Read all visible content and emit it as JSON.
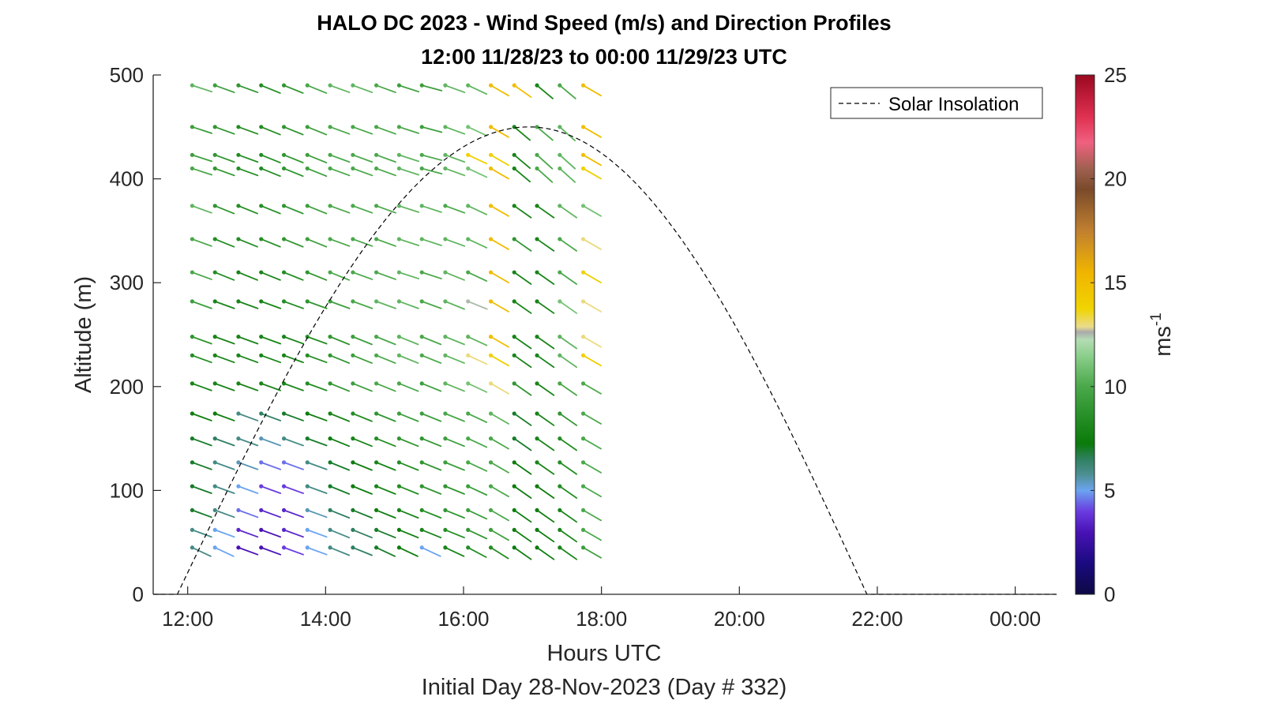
{
  "chart_data": {
    "type": "scatter",
    "title": "HALO DC 2023 - Wind Speed (m/s) and Direction Profiles",
    "subtitle": "12:00 11/28/23 to 00:00 11/29/23  UTC",
    "xlabel": "Hours UTC",
    "xlabel2": "Initial Day 28-Nov-2023 (Day # 332)",
    "ylabel": "Altitude (m)",
    "xlim_hours": [
      11.5,
      24.6
    ],
    "ylim": [
      0,
      500
    ],
    "x_ticks": [
      {
        "value": 12,
        "label": "12:00"
      },
      {
        "value": 14,
        "label": "14:00"
      },
      {
        "value": 16,
        "label": "16:00"
      },
      {
        "value": 18,
        "label": "18:00"
      },
      {
        "value": 20,
        "label": "20:00"
      },
      {
        "value": 22,
        "label": "22:00"
      },
      {
        "value": 24,
        "label": "00:00"
      }
    ],
    "y_ticks": [
      {
        "value": 0,
        "label": "0"
      },
      {
        "value": 100,
        "label": "100"
      },
      {
        "value": 200,
        "label": "200"
      },
      {
        "value": 300,
        "label": "300"
      },
      {
        "value": 400,
        "label": "400"
      },
      {
        "value": 500,
        "label": "500"
      }
    ],
    "colorbar": {
      "label": "ms",
      "label_exponent": "-1",
      "range": [
        0,
        25
      ],
      "ticks": [
        {
          "value": 0,
          "label": "0"
        },
        {
          "value": 5,
          "label": "5"
        },
        {
          "value": 10,
          "label": "10"
        },
        {
          "value": 15,
          "label": "15"
        },
        {
          "value": 20,
          "label": "20"
        },
        {
          "value": 25,
          "label": "25"
        }
      ]
    },
    "legend": {
      "entries": [
        {
          "name": "Solar Insolation",
          "style": "dashed",
          "color": "#000000"
        }
      ],
      "location": "top-right"
    },
    "solar_insolation": {
      "start_hour": 11.85,
      "end_hour": 21.85,
      "peak_hour": 16.95,
      "peak_altitude_equiv": 450
    },
    "wind_barbs": {
      "times_hours": [
        12.1,
        12.43,
        12.77,
        13.1,
        13.43,
        13.77,
        14.1,
        14.43,
        14.77,
        15.1,
        15.43,
        15.77,
        16.1,
        16.43,
        16.77,
        17.1,
        17.43,
        17.77
      ],
      "altitudes_m": [
        490,
        450,
        423,
        410,
        374,
        342,
        310,
        282,
        248,
        230,
        203,
        174,
        150,
        127,
        104,
        81,
        62,
        45
      ],
      "speeds_ms": [
        [
          10.5,
          9.5,
          9,
          8.5,
          9,
          10,
          10.5,
          10.5,
          10,
          9.5,
          9.5,
          10.5,
          10.5,
          15,
          15,
          8,
          10,
          15
        ],
        [
          9.5,
          9,
          8.5,
          8.5,
          9,
          9.5,
          10,
          10,
          10,
          10,
          9.5,
          10.5,
          11,
          15,
          8,
          10,
          10.5,
          15
        ],
        [
          9.5,
          9,
          8.5,
          8.5,
          9,
          9.5,
          10,
          10,
          10,
          10.5,
          10,
          10.5,
          14,
          14,
          8,
          10,
          10.5,
          15
        ],
        [
          10,
          9,
          8.5,
          8.5,
          9,
          9.5,
          10,
          10,
          10,
          10.5,
          10,
          10.5,
          11,
          15,
          8,
          10,
          10.5,
          14
        ],
        [
          10.5,
          9,
          8.5,
          8.5,
          9,
          9.5,
          10,
          10,
          10,
          10.5,
          10.5,
          10,
          10.5,
          15,
          8,
          8,
          10.5,
          11
        ],
        [
          10,
          8.5,
          8.5,
          8.5,
          9,
          9.5,
          10,
          10,
          10,
          10.5,
          10.5,
          10.5,
          10.5,
          15,
          9,
          8,
          10,
          13
        ],
        [
          10,
          8.5,
          8,
          8,
          8.5,
          9,
          10,
          10,
          10,
          10.5,
          10,
          10.5,
          10,
          15,
          8,
          8,
          10,
          14
        ],
        [
          9.5,
          8,
          8,
          8,
          8.5,
          9,
          9.5,
          10,
          10.5,
          10.5,
          10,
          10.5,
          12.5,
          15,
          8,
          8,
          11,
          13
        ],
        [
          9,
          8,
          8,
          8,
          8,
          8.5,
          9,
          9.5,
          10,
          10.5,
          10,
          10.5,
          10.5,
          15,
          8,
          8,
          10.5,
          13
        ],
        [
          8.5,
          8,
          8,
          8,
          8,
          8.5,
          9,
          9.5,
          10,
          10.5,
          10,
          10.5,
          13,
          14,
          8,
          8,
          10.5,
          14
        ],
        [
          8,
          8,
          8,
          8,
          8,
          8.5,
          9,
          9.5,
          10,
          10,
          9.5,
          10.5,
          11,
          13,
          9,
          8,
          10,
          10
        ],
        [
          7.5,
          7.5,
          6,
          6.5,
          7,
          7.5,
          8,
          8.5,
          9,
          9.5,
          9.5,
          10,
          10,
          10.5,
          7,
          8,
          9,
          10
        ],
        [
          7,
          6.5,
          6,
          5.5,
          6,
          7,
          7.5,
          8,
          8.5,
          9,
          9,
          9.5,
          10,
          10,
          7,
          8,
          8.5,
          10
        ],
        [
          7,
          6,
          5.5,
          4.5,
          4.5,
          6,
          7,
          7.5,
          8,
          8.5,
          9,
          9.5,
          10,
          10,
          7.5,
          8,
          8.5,
          10
        ],
        [
          7,
          6,
          5,
          4,
          4,
          6,
          7,
          7.5,
          8,
          8.5,
          9,
          9,
          9.5,
          10,
          7.5,
          7.5,
          8.5,
          10
        ],
        [
          7,
          6,
          4.5,
          3.5,
          3.5,
          5.5,
          6.5,
          7,
          7.5,
          8,
          8.5,
          9,
          9.5,
          10,
          7.5,
          7.5,
          8,
          10
        ],
        [
          6,
          5,
          3.5,
          3,
          3.5,
          5,
          6,
          6.5,
          7,
          7.5,
          8,
          8.5,
          9,
          9.5,
          7.5,
          7.5,
          8,
          10
        ],
        [
          6,
          5,
          3,
          3,
          4,
          5,
          6,
          6.5,
          7,
          7.5,
          5,
          8,
          8.5,
          8.5,
          7.5,
          7.5,
          8,
          9.5
        ]
      ],
      "directions_deg": [
        [
          288,
          290,
          290,
          292,
          292,
          292,
          290,
          290,
          290,
          288,
          285,
          290,
          295,
          300,
          305,
          310,
          310,
          300
        ],
        [
          288,
          290,
          290,
          292,
          292,
          292,
          290,
          290,
          290,
          288,
          285,
          290,
          295,
          300,
          310,
          310,
          312,
          300
        ],
        [
          288,
          290,
          290,
          292,
          292,
          292,
          290,
          290,
          290,
          288,
          285,
          290,
          295,
          300,
          310,
          312,
          312,
          300
        ],
        [
          288,
          290,
          290,
          292,
          292,
          292,
          290,
          290,
          290,
          288,
          285,
          290,
          295,
          300,
          310,
          312,
          312,
          300
        ],
        [
          290,
          292,
          292,
          292,
          292,
          292,
          290,
          290,
          290,
          288,
          288,
          290,
          295,
          300,
          305,
          305,
          305,
          300
        ],
        [
          290,
          292,
          292,
          292,
          292,
          292,
          290,
          290,
          290,
          288,
          288,
          290,
          295,
          300,
          305,
          305,
          305,
          300
        ],
        [
          290,
          292,
          292,
          292,
          292,
          292,
          292,
          290,
          290,
          288,
          288,
          292,
          295,
          300,
          305,
          305,
          305,
          300
        ],
        [
          290,
          290,
          290,
          290,
          290,
          290,
          290,
          290,
          290,
          290,
          290,
          292,
          292,
          300,
          305,
          305,
          305,
          300
        ],
        [
          290,
          290,
          290,
          290,
          290,
          290,
          292,
          292,
          292,
          292,
          292,
          292,
          295,
          300,
          305,
          305,
          305,
          300
        ],
        [
          290,
          290,
          290,
          290,
          290,
          290,
          292,
          292,
          292,
          292,
          292,
          292,
          295,
          300,
          305,
          305,
          305,
          300
        ],
        [
          290,
          290,
          290,
          290,
          290,
          290,
          292,
          292,
          292,
          292,
          292,
          292,
          295,
          300,
          305,
          305,
          305,
          300
        ],
        [
          290,
          290,
          290,
          290,
          290,
          290,
          292,
          292,
          292,
          292,
          292,
          292,
          295,
          300,
          305,
          305,
          305,
          300
        ],
        [
          290,
          290,
          290,
          290,
          290,
          290,
          292,
          292,
          292,
          292,
          292,
          292,
          295,
          300,
          305,
          305,
          305,
          300
        ],
        [
          290,
          290,
          290,
          290,
          290,
          290,
          292,
          292,
          292,
          292,
          292,
          292,
          295,
          300,
          305,
          305,
          305,
          300
        ],
        [
          290,
          290,
          290,
          290,
          290,
          290,
          292,
          292,
          292,
          292,
          292,
          292,
          295,
          300,
          305,
          305,
          305,
          300
        ],
        [
          290,
          290,
          290,
          290,
          290,
          290,
          292,
          292,
          292,
          292,
          292,
          292,
          295,
          300,
          305,
          305,
          305,
          300
        ],
        [
          290,
          290,
          290,
          290,
          290,
          290,
          292,
          292,
          292,
          292,
          292,
          292,
          295,
          300,
          305,
          305,
          305,
          300
        ],
        [
          295,
          295,
          290,
          290,
          290,
          290,
          292,
          292,
          295,
          295,
          295,
          295,
          298,
          302,
          305,
          305,
          305,
          300
        ]
      ]
    }
  }
}
